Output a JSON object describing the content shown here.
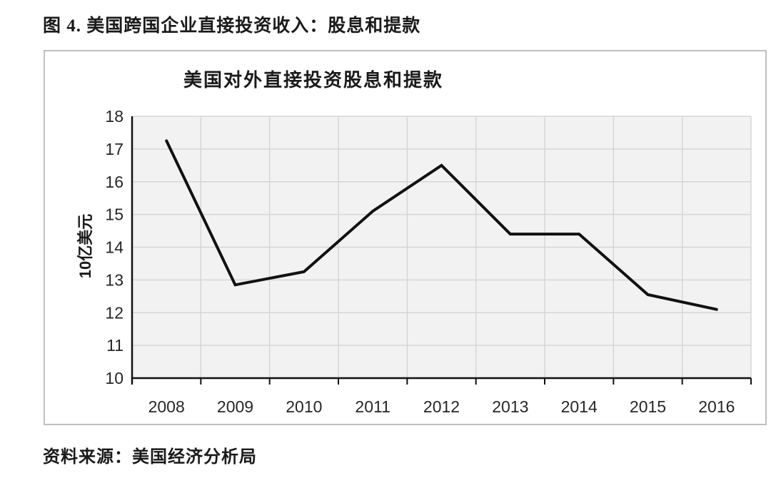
{
  "header": {
    "title": "图 4. 美国跨国企业直接投资收入：股息和提款"
  },
  "footer": {
    "source": "资料来源：美国经济分析局"
  },
  "chart_data": {
    "type": "line",
    "title": "美国对外直接投资股息和提款",
    "xlabel": "",
    "ylabel": "10亿美元",
    "categories": [
      "2008",
      "2009",
      "2010",
      "2011",
      "2012",
      "2013",
      "2014",
      "2015",
      "2016"
    ],
    "values": [
      17.25,
      12.85,
      13.25,
      15.1,
      16.5,
      14.4,
      14.4,
      12.55,
      12.1
    ],
    "ylim": [
      10,
      18
    ],
    "ytick_step": 1,
    "grid": true,
    "legend_position": "none",
    "line_color": "#111111",
    "line_width": 4,
    "plot_bg": "#f2f2f2",
    "grid_color": "#d6d6d6",
    "axis_color": "#111111",
    "tick_label_color": "#262626"
  }
}
